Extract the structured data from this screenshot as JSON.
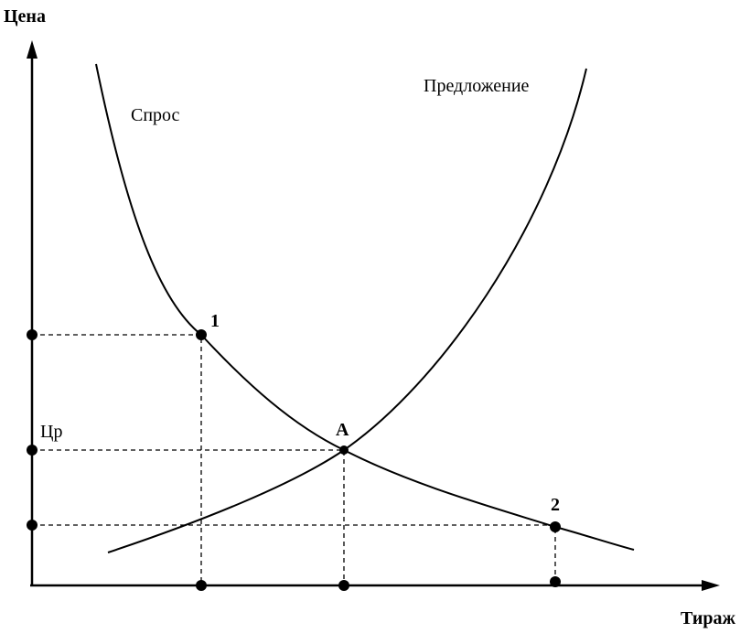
{
  "axes": {
    "y_label": "Цена",
    "x_label": "Тираж"
  },
  "curves": {
    "demand": "Спрос",
    "supply": "Предложение"
  },
  "points": {
    "p1": "1",
    "equilibrium": "A",
    "p2": "2",
    "equilibrium_price": "Цр"
  }
}
